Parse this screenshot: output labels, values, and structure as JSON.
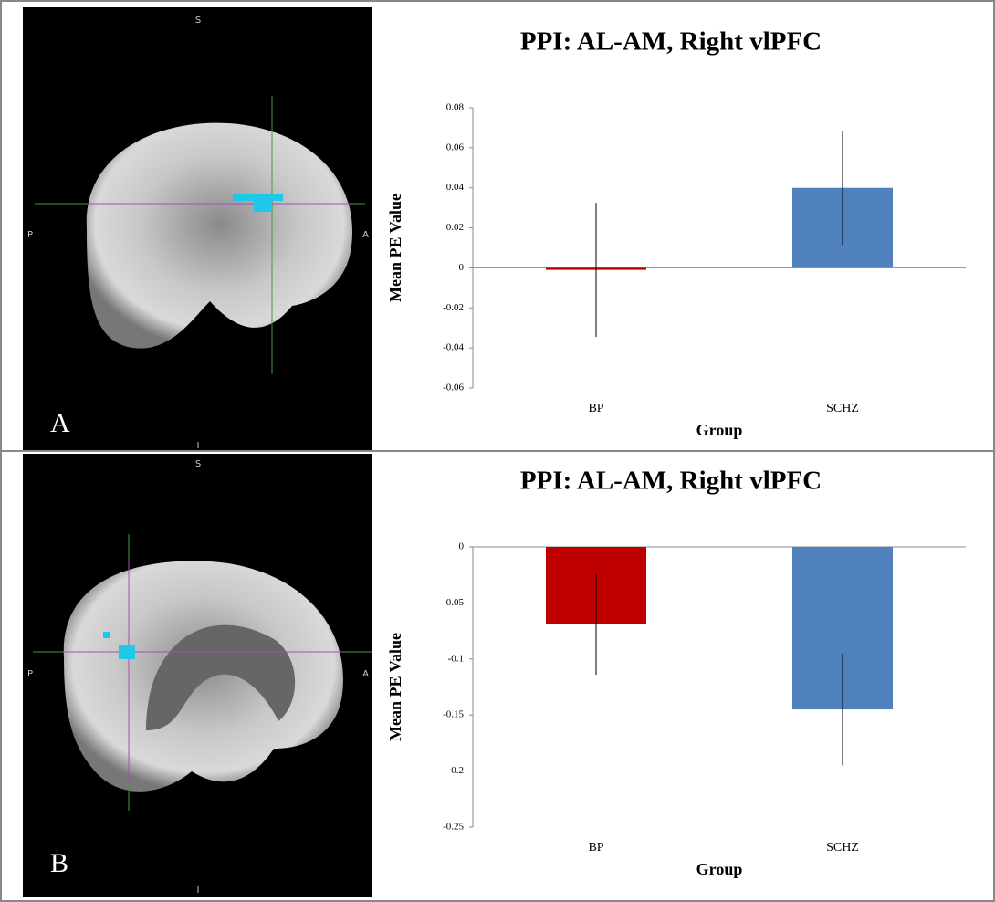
{
  "chart_data": [
    {
      "type": "bar",
      "title": "PPI: AL-AM, Right vlPFC",
      "y_label": "Mean PE Value",
      "x_label": "Group",
      "categories": [
        "BP",
        "SCHZ"
      ],
      "values": [
        -0.001,
        0.04
      ],
      "errors": [
        0.0335,
        0.0285
      ],
      "colors": [
        "#c00000",
        "#4f81bd"
      ],
      "ylim": [
        -0.06,
        0.08
      ],
      "yticks": [
        -0.06,
        -0.04,
        -0.02,
        0,
        0.02,
        0.04,
        0.06,
        0.08
      ]
    },
    {
      "type": "bar",
      "title": "PPI: AL-AM, Right vlPFC",
      "y_label": "Mean PE Value",
      "x_label": "Group",
      "categories": [
        "BP",
        "SCHZ"
      ],
      "values": [
        -0.069,
        -0.145
      ],
      "errors": [
        0.045,
        0.05
      ],
      "colors": [
        "#c00000",
        "#4f81bd"
      ],
      "ylim": [
        -0.25,
        0
      ],
      "yticks": [
        -0.25,
        -0.2,
        -0.15,
        -0.1,
        -0.05,
        0
      ]
    }
  ],
  "images": [
    {
      "panel": "A",
      "top": "S",
      "left": "P",
      "right": "A",
      "bottom": "I"
    },
    {
      "panel": "B",
      "top": "S",
      "left": "P",
      "right": "A",
      "bottom": "I"
    }
  ]
}
